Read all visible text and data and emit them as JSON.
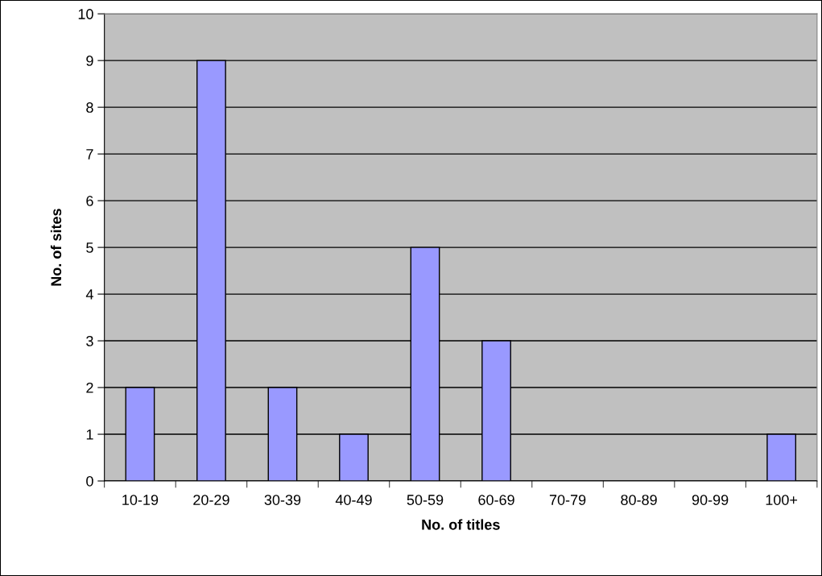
{
  "chart_data": {
    "type": "bar",
    "xlabel": "No. of titles",
    "ylabel": "No. of sites",
    "categories": [
      "10-19",
      "20-29",
      "30-39",
      "40-49",
      "50-59",
      "60-69",
      "70-79",
      "80-89",
      "90-99",
      "100+"
    ],
    "values": [
      2,
      9,
      2,
      1,
      5,
      3,
      0,
      0,
      0,
      1
    ],
    "color": "#9999ff",
    "ylim": [
      0,
      10
    ],
    "yticks": [
      0,
      1,
      2,
      3,
      4,
      5,
      6,
      7,
      8,
      9,
      10
    ],
    "grid": "y",
    "legend": false
  }
}
